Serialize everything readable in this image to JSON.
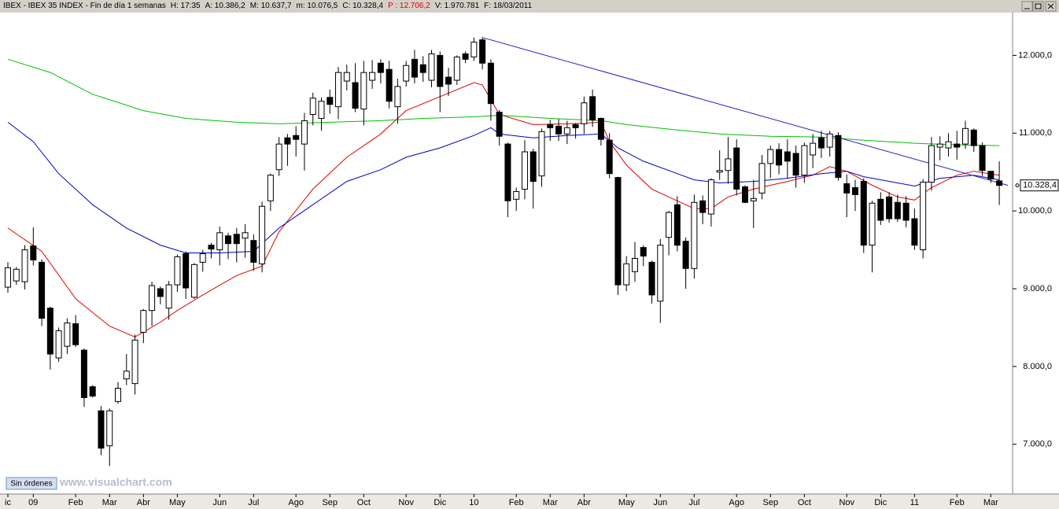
{
  "header": [
    {
      "text": "IBEX - IBEX 35 INDEX - Fin de día 1 semanas",
      "color": "#000000"
    },
    {
      "text": "H: 17:35",
      "color": "#000000"
    },
    {
      "text": "A: 10.386,2",
      "color": "#000000"
    },
    {
      "text": "M: 10.637,7",
      "color": "#000000"
    },
    {
      "text": "m: 10.076,5",
      "color": "#000000"
    },
    {
      "text": "C: 10.328,4",
      "color": "#000000"
    },
    {
      "text": "P : 12.706,2",
      "color": "#e00000"
    },
    {
      "text": "V: 1.970.781",
      "color": "#000000"
    },
    {
      "text": "F: 18/03/2011",
      "color": "#000000"
    }
  ],
  "footer": {
    "button": "Sin órdenes",
    "watermark": "www.visualchart.com"
  },
  "chart_data": {
    "type": "candlestick",
    "categories": [
      "ic",
      null,
      null,
      "09",
      null,
      null,
      null,
      null,
      "Feb",
      null,
      null,
      null,
      "Mar",
      null,
      null,
      null,
      "Abr",
      null,
      null,
      null,
      "May",
      null,
      null,
      null,
      null,
      "Jun",
      null,
      null,
      null,
      "Jul",
      null,
      null,
      null,
      null,
      "Ago",
      null,
      null,
      null,
      "Sep",
      null,
      null,
      null,
      "Oct",
      null,
      null,
      null,
      null,
      "Nov",
      null,
      null,
      null,
      "Dic",
      null,
      null,
      null,
      "10",
      null,
      null,
      null,
      null,
      "Feb",
      null,
      null,
      null,
      "Mar",
      null,
      null,
      null,
      "Abr",
      null,
      null,
      null,
      null,
      "May",
      null,
      null,
      null,
      "Jun",
      null,
      null,
      null,
      "Jul",
      null,
      null,
      null,
      null,
      "Ago",
      null,
      null,
      null,
      "Sep",
      null,
      null,
      null,
      "Oct",
      null,
      null,
      null,
      null,
      "Nov",
      null,
      null,
      null,
      "Dic",
      null,
      null,
      null,
      "11",
      null,
      null,
      null,
      null,
      "Feb",
      null,
      null,
      null,
      "Mar",
      null
    ],
    "candles": {
      "open": [
        9020,
        9100,
        9090,
        9550,
        9340,
        8750,
        8110,
        8260,
        8550,
        8210,
        7740,
        7430,
        6980,
        7550,
        7840,
        7780,
        8440,
        8720,
        9000,
        8750,
        9050,
        9450,
        8890,
        9340,
        9560,
        9500,
        9680,
        9700,
        9650,
        9620,
        9320,
        10130,
        10530,
        10940,
        10970,
        10860,
        11240,
        11190,
        11460,
        11340,
        11670,
        11650,
        11310,
        11680,
        11900,
        11820,
        11340,
        11670,
        11950,
        11880,
        11680,
        12000,
        11720,
        11680,
        12020,
        11980,
        12200,
        11900,
        11270,
        10860,
        10150,
        10280,
        10760,
        10450,
        11110,
        11090,
        10990,
        11110,
        11120,
        11470,
        11190,
        10910,
        10430,
        9050,
        9220,
        9530,
        9340,
        8840,
        9660,
        10080,
        9610,
        9260,
        10130,
        9960,
        10500,
        10520,
        10810,
        10310,
        10130,
        10230,
        10610,
        10790,
        10760,
        10740,
        10460,
        10720,
        10940,
        10820,
        10970,
        10350,
        10300,
        10380,
        9560,
        10150,
        10180,
        10110,
        10100,
        9900,
        9500,
        10370,
        10820,
        10810,
        10860,
        10860,
        11040,
        10840,
        10510,
        10386.2
      ],
      "high": [
        9340,
        9280,
        9560,
        9790,
        9380,
        8770,
        8500,
        8620,
        8660,
        8230,
        7760,
        7490,
        7460,
        7800,
        8160,
        8410,
        8740,
        9090,
        9030,
        9100,
        9440,
        9480,
        9330,
        9500,
        9590,
        9800,
        9720,
        9780,
        9830,
        9700,
        10120,
        10480,
        10950,
        10990,
        11090,
        11260,
        11520,
        11460,
        11560,
        11850,
        11880,
        11900,
        11930,
        11940,
        11950,
        11930,
        11700,
        11930,
        12070,
        11990,
        12070,
        12050,
        11840,
        12000,
        12050,
        12230,
        12230,
        11950,
        11300,
        10880,
        10300,
        10910,
        10800,
        11060,
        11170,
        11180,
        11160,
        11130,
        11470,
        11560,
        11200,
        11000,
        10440,
        9420,
        9600,
        9560,
        9360,
        9640,
        10000,
        10190,
        9660,
        10210,
        10200,
        10420,
        10780,
        10950,
        10920,
        10330,
        10400,
        10720,
        10840,
        10870,
        10920,
        10840,
        10880,
        10990,
        11030,
        11030,
        11010,
        10470,
        10400,
        10420,
        10130,
        10240,
        10240,
        10210,
        10190,
        10030,
        10410,
        10950,
        10960,
        11000,
        11030,
        11160,
        11060,
        10880,
        10510,
        10637.7
      ],
      "low": [
        8950,
        9050,
        8990,
        9300,
        8520,
        7960,
        8060,
        8160,
        8250,
        7480,
        7600,
        6860,
        6720,
        7520,
        7760,
        7640,
        8300,
        8520,
        8800,
        8600,
        8960,
        8870,
        8870,
        9220,
        9390,
        9300,
        9380,
        9340,
        9400,
        9230,
        9210,
        10000,
        10450,
        10580,
        10700,
        10520,
        11100,
        11030,
        11250,
        11180,
        11550,
        11270,
        11100,
        11570,
        11640,
        11320,
        11120,
        11600,
        11640,
        11660,
        11590,
        11270,
        11480,
        11620,
        11900,
        11930,
        11820,
        11160,
        10840,
        9920,
        10000,
        10150,
        10030,
        10310,
        10900,
        10900,
        10860,
        10930,
        10990,
        11080,
        10840,
        10420,
        8920,
        8970,
        9090,
        9290,
        8810,
        8560,
        9430,
        9480,
        9000,
        9130,
        9830,
        9800,
        10400,
        10350,
        10200,
        10100,
        9780,
        10150,
        10420,
        10470,
        10420,
        10300,
        10360,
        10550,
        10680,
        10700,
        10390,
        9920,
        10000,
        9460,
        9210,
        9820,
        9850,
        9860,
        9790,
        9500,
        9390,
        10260,
        10650,
        10700,
        10660,
        10800,
        10760,
        10450,
        10360,
        10076.5
      ],
      "close": [
        9270,
        9250,
        9500,
        9370,
        8620,
        8160,
        8460,
        8560,
        8280,
        7600,
        7620,
        6950,
        7430,
        7720,
        7940,
        8340,
        8720,
        9040,
        8900,
        9050,
        9410,
        9010,
        9310,
        9450,
        9510,
        9720,
        9580,
        9580,
        9720,
        9340,
        10060,
        10460,
        10860,
        10860,
        10920,
        11160,
        11450,
        11410,
        11370,
        11780,
        11780,
        11320,
        11780,
        11780,
        11780,
        11410,
        11600,
        11870,
        11720,
        11780,
        12020,
        11600,
        11630,
        11980,
        11950,
        12170,
        11900,
        11380,
        10960,
        10130,
        10250,
        10760,
        10380,
        11020,
        11070,
        10990,
        11070,
        11070,
        11390,
        11170,
        10920,
        10480,
        9050,
        9320,
        9390,
        9420,
        8920,
        9560,
        9980,
        9560,
        9260,
        10110,
        9980,
        10400,
        10520,
        10670,
        10280,
        10110,
        10160,
        10610,
        10790,
        10590,
        10640,
        10460,
        10840,
        10870,
        10810,
        10990,
        10430,
        10230,
        10210,
        9560,
        10100,
        9880,
        9900,
        9900,
        9880,
        9560,
        10370,
        10840,
        10860,
        10890,
        10820,
        11060,
        10840,
        10520,
        10410,
        10328.4
      ]
    },
    "lines": [
      {
        "color": "#e00000",
        "x": [
          0,
          4,
          8,
          12,
          15,
          18,
          20,
          23,
          27,
          30,
          32,
          36,
          40,
          44,
          47,
          51,
          55,
          56,
          58,
          62,
          66,
          70,
          71,
          73,
          76,
          79,
          81,
          83,
          85,
          88,
          92,
          95,
          97,
          99,
          102,
          105,
          107,
          109,
          112,
          114,
          117
        ],
        "values": [
          9780,
          9480,
          8870,
          8520,
          8380,
          8570,
          8720,
          8920,
          9170,
          9290,
          9730,
          10280,
          10690,
          10990,
          11290,
          11470,
          11650,
          11620,
          11240,
          11110,
          11120,
          11140,
          10890,
          10590,
          10280,
          10130,
          10030,
          10030,
          10180,
          10280,
          10380,
          10460,
          10570,
          10510,
          10330,
          10180,
          10140,
          10300,
          10460,
          10510,
          10460
        ]
      },
      {
        "color": "#0000c0",
        "x": [
          0,
          3,
          6,
          10,
          14,
          18,
          21,
          25,
          29,
          32,
          36,
          40,
          44,
          47,
          51,
          55,
          57,
          58,
          62,
          66,
          70,
          72,
          75,
          79,
          81,
          84,
          88,
          92,
          96,
          99,
          101,
          105,
          107,
          110,
          114,
          117
        ],
        "values": [
          11140,
          10890,
          10480,
          10080,
          9780,
          9560,
          9460,
          9460,
          9480,
          9780,
          10080,
          10380,
          10530,
          10690,
          10810,
          10970,
          11070,
          10990,
          10940,
          10970,
          10990,
          10810,
          10640,
          10480,
          10400,
          10360,
          10380,
          10420,
          10480,
          10510,
          10440,
          10360,
          10320,
          10420,
          10460,
          10400
        ]
      },
      {
        "color": "#00c000",
        "x": [
          0,
          5,
          10,
          16,
          21,
          27,
          32,
          38,
          44,
          49,
          55,
          58,
          64,
          70,
          73,
          79,
          84,
          90,
          96,
          101,
          107,
          112,
          117
        ],
        "values": [
          11950,
          11780,
          11500,
          11290,
          11190,
          11140,
          11120,
          11140,
          11160,
          11190,
          11210,
          11230,
          11190,
          11160,
          11110,
          11040,
          10990,
          10960,
          10950,
          10910,
          10870,
          10850,
          10840
        ]
      }
    ],
    "trendline": {
      "color": "#2020c0",
      "x": [
        56,
        118
      ],
      "values": [
        12230,
        10330
      ]
    },
    "ylim": [
      6360,
      12530
    ],
    "yticks": [
      {
        "value": 7000,
        "label": "7.000,0"
      },
      {
        "value": 8000,
        "label": "8.000,0"
      },
      {
        "value": 9000,
        "label": "9.000,0"
      },
      {
        "value": 10000,
        "label": "10.000,0"
      },
      {
        "value": 11000,
        "label": "11.000,0"
      },
      {
        "value": 12000,
        "label": "12.000,0"
      }
    ],
    "last_price": {
      "value": 10328.4,
      "label": "10.328,4"
    }
  }
}
